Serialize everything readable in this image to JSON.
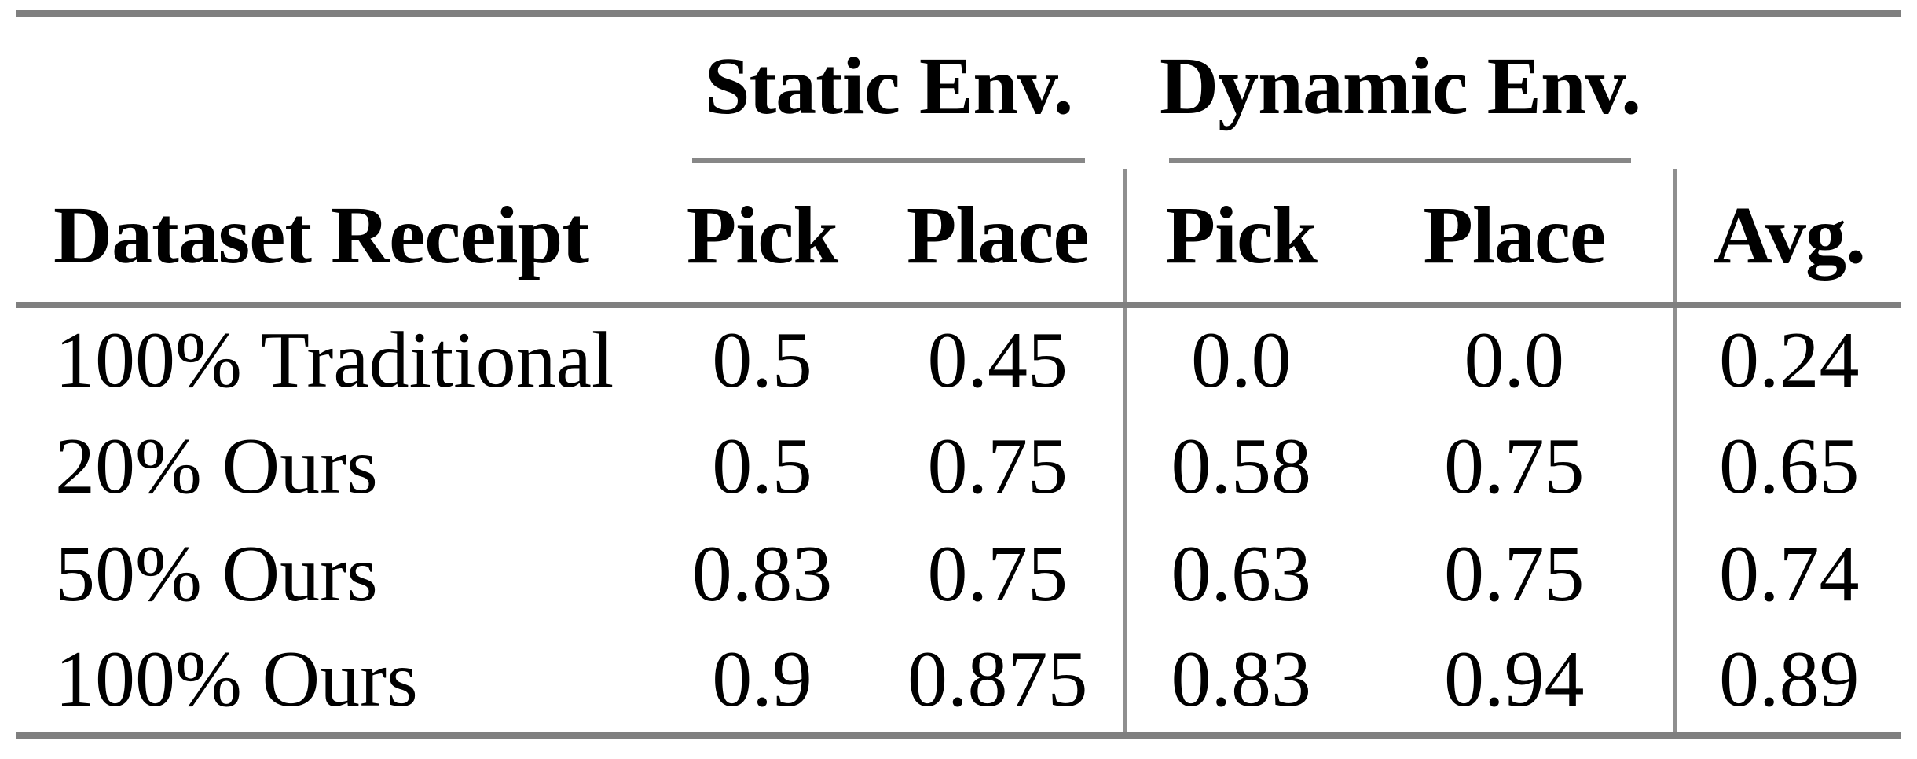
{
  "table": {
    "groups": [
      {
        "label": "Static Env."
      },
      {
        "label": "Dynamic Env."
      }
    ],
    "columns": [
      "Dataset Receipt",
      "Pick",
      "Place",
      "Pick",
      "Place",
      "Avg."
    ],
    "rows": [
      {
        "label": "100% Traditional",
        "values": [
          "0.5",
          "0.45",
          "0.0",
          "0.0",
          "0.24"
        ]
      },
      {
        "label": "20% Ours",
        "values": [
          "0.5",
          "0.75",
          "0.58",
          "0.75",
          "0.65"
        ]
      },
      {
        "label": "50% Ours",
        "values": [
          "0.83",
          "0.75",
          "0.63",
          "0.75",
          "0.74"
        ]
      },
      {
        "label": "100% Ours",
        "values": [
          "0.9",
          "0.875",
          "0.83",
          "0.94",
          "0.89"
        ]
      }
    ],
    "colors": {
      "rule": "#7f7f7f",
      "cmidrule": "#878787",
      "vbar": "#8f8f8f",
      "text": "#000000",
      "background": "#ffffff"
    }
  },
  "chart_data": {
    "type": "table",
    "title": "",
    "column_groups": [
      {
        "label": "Static Env.",
        "columns": [
          "Pick",
          "Place"
        ]
      },
      {
        "label": "Dynamic Env.",
        "columns": [
          "Pick",
          "Place"
        ]
      }
    ],
    "columns": [
      "Dataset Receipt",
      "Static Env. Pick",
      "Static Env. Place",
      "Dynamic Env. Pick",
      "Dynamic Env. Place",
      "Avg."
    ],
    "rows": [
      [
        "100% Traditional",
        0.5,
        0.45,
        0.0,
        0.0,
        0.24
      ],
      [
        "20% Ours",
        0.5,
        0.75,
        0.58,
        0.75,
        0.65
      ],
      [
        "50% Ours",
        0.83,
        0.75,
        0.63,
        0.75,
        0.74
      ],
      [
        "100% Ours",
        0.9,
        0.875,
        0.83,
        0.94,
        0.89
      ]
    ]
  }
}
